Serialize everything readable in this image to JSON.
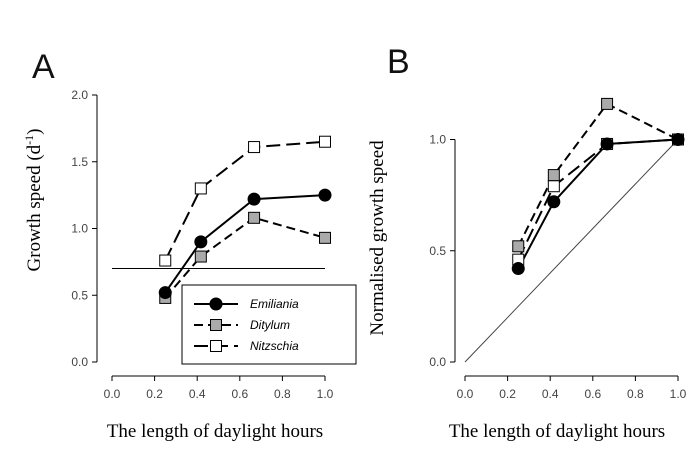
{
  "chart_data": [
    {
      "type": "line",
      "panel_label": "A",
      "xlabel": "The length of daylight hours",
      "ylabel": "Growth speed (d",
      "ylabel_sup": "-1",
      "ylabel_close": ")",
      "xlim": [
        0.0,
        1.0
      ],
      "ylim": [
        0.0,
        2.0
      ],
      "xticks": [
        "0.0",
        "0.2",
        "0.4",
        "0.6",
        "0.8",
        "1.0"
      ],
      "yticks": [
        "0.0",
        "0.5",
        "1.0",
        "1.5",
        "2.0"
      ],
      "x": [
        0.25,
        0.417,
        0.667,
        1.0
      ],
      "series": [
        {
          "name": "Emiliania",
          "values": [
            0.52,
            0.9,
            1.22,
            1.25
          ],
          "marker": "circle",
          "fill": "#000000",
          "dash": "solid"
        },
        {
          "name": "Ditylum",
          "values": [
            0.48,
            0.79,
            1.08,
            0.93
          ],
          "marker": "square",
          "fill": "#aaaaaa",
          "dash": "dashed"
        },
        {
          "name": "Nitzschia",
          "values": [
            0.76,
            1.3,
            1.61,
            1.65
          ],
          "marker": "square",
          "fill": "#ffffff",
          "dash": "longdash"
        }
      ],
      "reference_line": {
        "y": 0.7
      },
      "legend": "bottom-right"
    },
    {
      "type": "line",
      "panel_label": "B",
      "xlabel": "The length of daylight hours",
      "ylabel": "Normalised growth speed",
      "xlim": [
        0.0,
        1.0
      ],
      "ylim": [
        0.0,
        1.2
      ],
      "xticks": [
        "0.0",
        "0.2",
        "0.4",
        "0.6",
        "0.8",
        "1.0"
      ],
      "yticks": [
        "0.0",
        "0.5",
        "1.0"
      ],
      "x": [
        0.25,
        0.417,
        0.667,
        1.0
      ],
      "series": [
        {
          "name": "Emiliania",
          "values": [
            0.42,
            0.72,
            0.98,
            1.0
          ],
          "marker": "circle",
          "fill": "#000000",
          "dash": "solid"
        },
        {
          "name": "Ditylum",
          "values": [
            0.52,
            0.84,
            1.16,
            1.0
          ],
          "marker": "square",
          "fill": "#aaaaaa",
          "dash": "dashed"
        },
        {
          "name": "Nitzschia",
          "values": [
            0.46,
            0.79,
            0.98,
            1.0
          ],
          "marker": "square",
          "fill": "#ffffff",
          "dash": "longdash"
        }
      ],
      "reference_line": {
        "from": [
          0.0,
          0.0
        ],
        "to": [
          1.0,
          1.0
        ]
      }
    }
  ]
}
